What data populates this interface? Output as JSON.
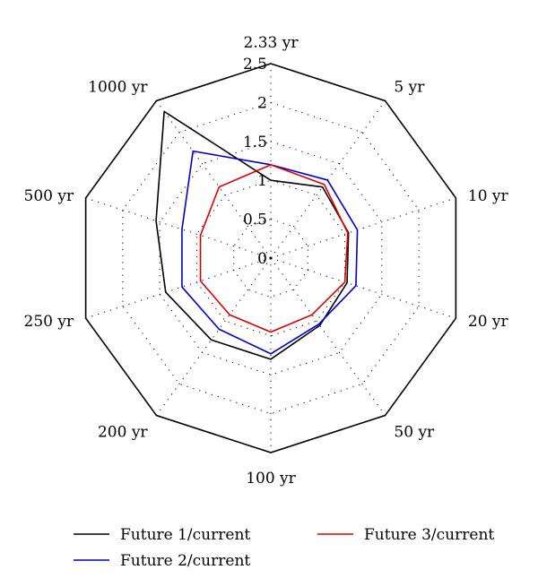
{
  "chart_data": {
    "type": "radar",
    "categories": [
      "2.33 yr",
      "5 yr",
      "10 yr",
      "20 yr",
      "50 yr",
      "100 yr",
      "200 yr",
      "250 yr",
      "500 yr",
      "1000 yr"
    ],
    "r_ticks": [
      "0",
      "0.5",
      "1",
      "1.5",
      "2",
      "2.5"
    ],
    "r_max": 2.5,
    "series": [
      {
        "name": "Future 1/current",
        "color": "#000000",
        "values": [
          1.0,
          1.13,
          1.05,
          1.03,
          1.07,
          1.3,
          1.3,
          1.42,
          1.55,
          2.33
        ]
      },
      {
        "name": "Future 2/current",
        "color": "#0000cc",
        "values": [
          1.2,
          1.24,
          1.17,
          1.15,
          1.05,
          1.23,
          1.13,
          1.2,
          1.2,
          1.7
        ]
      },
      {
        "name": "Future 3/current",
        "color": "#dd0000",
        "values": [
          1.2,
          1.17,
          1.04,
          1.0,
          0.9,
          0.95,
          0.9,
          0.95,
          0.95,
          1.13
        ]
      }
    ],
    "legend_placement": "bottom",
    "grid": true
  }
}
